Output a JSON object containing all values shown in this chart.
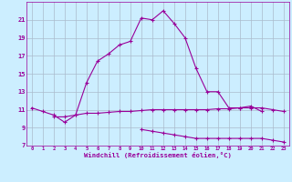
{
  "xlabel": "Windchill (Refroidissement éolien,°C)",
  "hours": [
    0,
    1,
    2,
    3,
    4,
    5,
    6,
    7,
    8,
    9,
    10,
    11,
    12,
    13,
    14,
    15,
    16,
    17,
    18,
    19,
    20,
    21,
    22,
    23
  ],
  "line1": [
    11.2,
    10.8,
    10.4,
    9.6,
    10.4,
    14.0,
    16.4,
    17.2,
    18.2,
    18.6,
    21.2,
    21.0,
    22.0,
    20.6,
    19.0,
    15.6,
    13.0,
    13.0,
    11.2,
    11.2,
    11.4,
    10.8,
    null,
    null
  ],
  "line2": [
    null,
    null,
    10.2,
    10.2,
    10.4,
    10.6,
    10.6,
    10.7,
    10.8,
    10.8,
    10.9,
    11.0,
    11.0,
    11.0,
    11.0,
    11.0,
    11.0,
    11.1,
    11.1,
    11.2,
    11.2,
    11.2,
    11.0,
    10.8
  ],
  "line3": [
    null,
    null,
    null,
    null,
    null,
    null,
    null,
    null,
    null,
    null,
    8.8,
    8.6,
    8.4,
    8.2,
    8.0,
    7.8,
    7.8,
    7.8,
    7.8,
    7.8,
    7.8,
    7.8,
    7.6,
    7.4
  ],
  "line_color": "#990099",
  "bg_color": "#cceeff",
  "grid_color": "#aabbcc",
  "ylim": [
    7,
    23
  ],
  "yticks": [
    7,
    9,
    11,
    13,
    15,
    17,
    19,
    21
  ],
  "xlim": [
    -0.5,
    23.5
  ]
}
